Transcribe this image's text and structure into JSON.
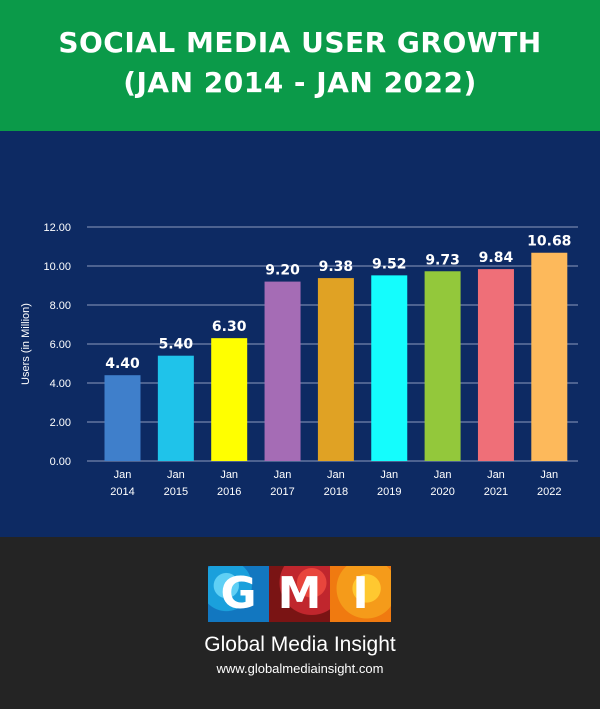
{
  "header": {
    "title_line1": "SOCIAL MEDIA USER GROWTH",
    "title_line2": "(JAN 2014 - JAN 2022)"
  },
  "chart_data": {
    "type": "bar",
    "categories": [
      [
        "Jan",
        "2014"
      ],
      [
        "Jan",
        "2015"
      ],
      [
        "Jan",
        "2016"
      ],
      [
        "Jan",
        "2017"
      ],
      [
        "Jan",
        "2018"
      ],
      [
        "Jan",
        "2019"
      ],
      [
        "Jan",
        "2020"
      ],
      [
        "Jan",
        "2021"
      ],
      [
        "Jan",
        "2022"
      ]
    ],
    "values": [
      4.4,
      5.4,
      6.3,
      9.2,
      9.38,
      9.52,
      9.73,
      9.84,
      10.68
    ],
    "value_labels": [
      "4.40",
      "5.40",
      "6.30",
      "9.20",
      "9.38",
      "9.52",
      "9.73",
      "9.84",
      "10.68"
    ],
    "colors": [
      "#3f7fcb",
      "#1fc3ea",
      "#ffff00",
      "#a56cb5",
      "#e0a224",
      "#14fdfd",
      "#93c83b",
      "#ef6f78",
      "#fdb95b"
    ],
    "ylabel": "Users (in Million)",
    "ylim": [
      0,
      12
    ],
    "yticks": [
      "0.00",
      "2.00",
      "4.00",
      "6.00",
      "8.00",
      "10.00",
      "12.00"
    ],
    "grid": true,
    "legend": "none",
    "gridline_color": "#8d9bbd",
    "text_color": "#ffffff"
  },
  "footer": {
    "logo_letters": [
      "G",
      "M",
      "I"
    ],
    "brand": "Global Media Insight",
    "website": "www.globalmediainsight.com"
  }
}
